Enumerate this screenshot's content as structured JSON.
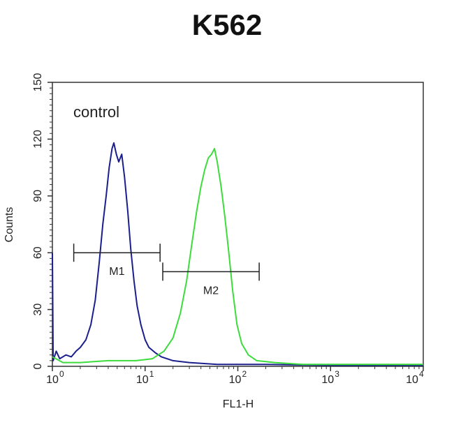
{
  "chart_data": {
    "type": "line",
    "title": "K562",
    "xlabel": "FL1-H",
    "ylabel": "Counts",
    "x_scale": "log",
    "xlim": [
      1,
      10000
    ],
    "ylim": [
      0,
      150
    ],
    "x_ticks": [
      {
        "base": "10",
        "exp": "0"
      },
      {
        "base": "10",
        "exp": "1"
      },
      {
        "base": "10",
        "exp": "2"
      },
      {
        "base": "10",
        "exp": "3"
      },
      {
        "base": "10",
        "exp": "4"
      }
    ],
    "y_ticks": [
      "0",
      "30",
      "60",
      "90",
      "120",
      "150"
    ],
    "annotation": "control",
    "series": [
      {
        "color": "#1a1f8c",
        "points": [
          [
            1.0,
            60
          ],
          [
            1.02,
            3
          ],
          [
            1.1,
            8
          ],
          [
            1.2,
            4
          ],
          [
            1.4,
            6
          ],
          [
            1.6,
            5
          ],
          [
            1.8,
            8
          ],
          [
            2.0,
            10
          ],
          [
            2.3,
            14
          ],
          [
            2.6,
            22
          ],
          [
            2.9,
            35
          ],
          [
            3.2,
            55
          ],
          [
            3.5,
            75
          ],
          [
            3.8,
            90
          ],
          [
            4.1,
            105
          ],
          [
            4.4,
            115
          ],
          [
            4.6,
            118
          ],
          [
            4.9,
            112
          ],
          [
            5.2,
            108
          ],
          [
            5.6,
            112
          ],
          [
            6.0,
            100
          ],
          [
            6.5,
            82
          ],
          [
            7.0,
            62
          ],
          [
            7.6,
            45
          ],
          [
            8.2,
            32
          ],
          [
            9.0,
            22
          ],
          [
            10,
            14
          ],
          [
            11,
            10
          ],
          [
            13,
            7
          ],
          [
            15,
            5
          ],
          [
            20,
            3
          ],
          [
            30,
            2
          ],
          [
            60,
            1
          ],
          [
            200,
            1
          ],
          [
            1000,
            0.5
          ],
          [
            10000,
            0.5
          ]
        ]
      },
      {
        "color": "#3ddc3d",
        "points": [
          [
            1.0,
            5
          ],
          [
            1.3,
            2
          ],
          [
            2,
            2
          ],
          [
            4,
            3
          ],
          [
            8,
            3
          ],
          [
            12,
            4
          ],
          [
            16,
            8
          ],
          [
            20,
            15
          ],
          [
            24,
            28
          ],
          [
            28,
            45
          ],
          [
            32,
            65
          ],
          [
            36,
            82
          ],
          [
            40,
            95
          ],
          [
            44,
            104
          ],
          [
            48,
            110
          ],
          [
            52,
            112
          ],
          [
            56,
            115
          ],
          [
            60,
            108
          ],
          [
            66,
            95
          ],
          [
            72,
            80
          ],
          [
            80,
            60
          ],
          [
            88,
            40
          ],
          [
            98,
            22
          ],
          [
            110,
            12
          ],
          [
            130,
            6
          ],
          [
            160,
            3
          ],
          [
            250,
            2
          ],
          [
            500,
            1
          ],
          [
            2000,
            1
          ],
          [
            10000,
            1
          ]
        ]
      }
    ],
    "markers": [
      {
        "label": "M1",
        "x_start": 1.7,
        "x_end": 14.5,
        "y": 60
      },
      {
        "label": "M2",
        "x_start": 15.5,
        "x_end": 170,
        "y": 50
      }
    ]
  }
}
